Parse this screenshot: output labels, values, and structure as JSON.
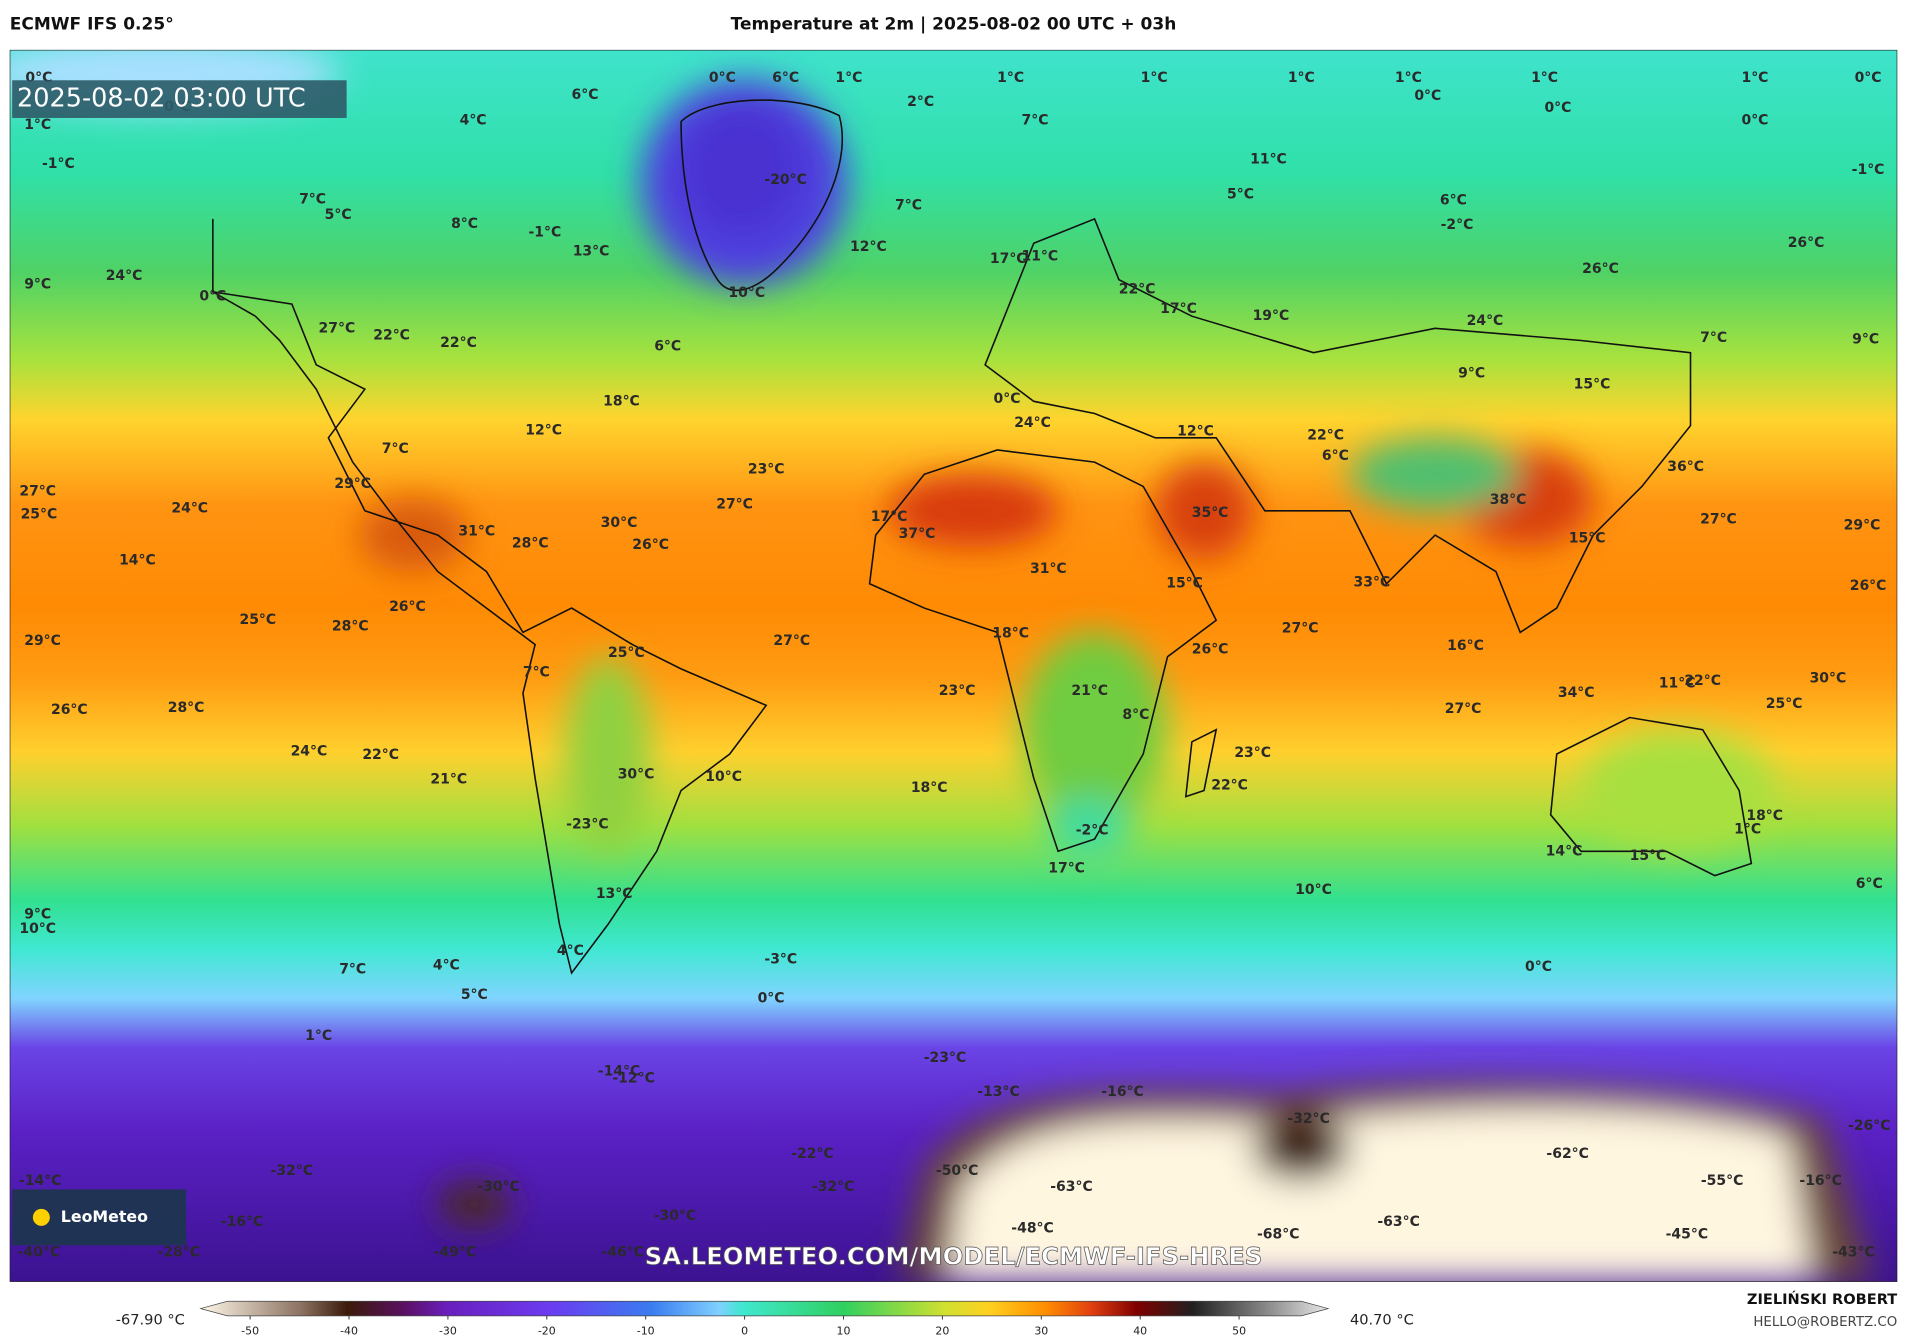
{
  "header": {
    "model": "ECMWF IFS 0.25°",
    "title": "Temperature at 2m | 2025-08-02 00 UTC + 03h"
  },
  "map": {
    "timestamp": "2025-08-02 03:00 UTC",
    "watermark": "SA.LEOMETEO.COM/MODEL/ECMWF-IFS-HRES",
    "logo": "LeoMeteo",
    "labels": [
      "0°C",
      "0°C",
      "1°C",
      "-1°C",
      "6°C",
      "4°C",
      "0°C",
      "6°C",
      "1°C",
      "2°C",
      "1°C",
      "1°C",
      "1°C",
      "1°C",
      "0°C",
      "1°C",
      "0°C",
      "1°C",
      "0°C",
      "0°C",
      "7°C",
      "11°C",
      "5°C",
      "6°C",
      "-2°C",
      "-1°C",
      "-20°C",
      "7°C",
      "7°C",
      "5°C",
      "8°C",
      "-1°C",
      "13°C",
      "12°C",
      "9°C",
      "24°C",
      "0°C",
      "10°C",
      "17°C",
      "11°C",
      "22°C",
      "17°C",
      "19°C",
      "26°C",
      "26°C",
      "24°C",
      "7°C",
      "9°C",
      "27°C",
      "22°C",
      "22°C",
      "6°C",
      "18°C",
      "0°C",
      "24°C",
      "12°C",
      "12°C",
      "22°C",
      "6°C",
      "9°C",
      "15°C",
      "36°C",
      "7°C",
      "23°C",
      "27°C",
      "27°C",
      "25°C",
      "24°C",
      "29°C",
      "31°C",
      "28°C",
      "30°C",
      "26°C",
      "17°C",
      "37°C",
      "35°C",
      "38°C",
      "15°C",
      "27°C",
      "29°C",
      "14°C",
      "31°C",
      "15°C",
      "33°C",
      "26°C",
      "26°C",
      "25°C",
      "28°C",
      "29°C",
      "27°C",
      "18°C",
      "27°C",
      "26°C",
      "16°C",
      "25°C",
      "7°C",
      "23°C",
      "21°C",
      "8°C",
      "34°C",
      "11°C",
      "22°C",
      "30°C",
      "25°C",
      "27°C",
      "26°C",
      "28°C",
      "24°C",
      "22°C",
      "23°C",
      "21°C",
      "30°C",
      "10°C",
      "22°C",
      "18°C",
      "18°C",
      "1°C",
      "-23°C",
      "-2°C",
      "17°C",
      "14°C",
      "15°C",
      "6°C",
      "10°C",
      "13°C",
      "9°C",
      "10°C",
      "4°C",
      "-3°C",
      "7°C",
      "4°C",
      "5°C",
      "0°C",
      "0°C",
      "1°C",
      "-23°C",
      "-14°C",
      "-12°C",
      "-13°C",
      "-16°C",
      "-32°C",
      "-26°C",
      "-22°C",
      "-62°C",
      "-32°C",
      "-50°C",
      "-63°C",
      "-14°C",
      "-30°C",
      "-32°C",
      "-55°C",
      "-16°C",
      "-16°C",
      "-30°C",
      "-48°C",
      "-63°C",
      "-68°C",
      "-45°C",
      "-40°C",
      "-28°C",
      "-49°C",
      "-46°C",
      "-43°C"
    ]
  },
  "colorbar": {
    "min_label": "-67.90 °C",
    "max_label": "40.70 °C",
    "lim": [
      -55,
      59
    ],
    "ticks": [
      -50,
      -40,
      -30,
      -20,
      -10,
      0,
      10,
      20,
      30,
      40,
      50
    ]
  },
  "footer": {
    "author": "ZIELIŃSKI ROBERT",
    "email": "HELLO@ROBERTZ.CO"
  }
}
